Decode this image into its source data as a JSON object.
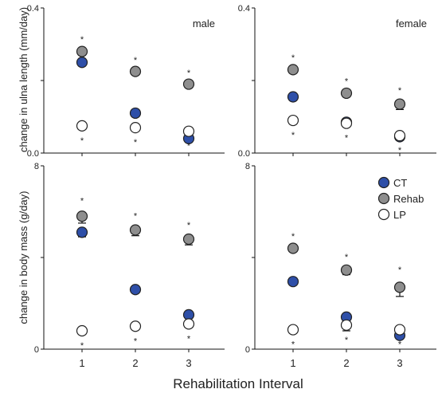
{
  "colors": {
    "CT": "#2e4fa8",
    "Rehab": "#8e8e8e",
    "LP": "#ffffff",
    "edge": "#222222"
  },
  "xlabel": "Rehabilitation Interval",
  "legend": {
    "placement": "inside bottom-right panel, top-right",
    "entries": [
      "CT",
      "Rehab",
      "LP"
    ]
  },
  "chart_data": [
    {
      "type": "scatter",
      "panel": "top-left",
      "title": "male",
      "ylabel": "change in ulna length (mm/day)",
      "ylim": [
        0.0,
        0.4
      ],
      "yticks": [
        "0.0",
        "0.4"
      ],
      "x": [
        "1",
        "2",
        "3"
      ],
      "series": [
        {
          "name": "CT",
          "values": [
            0.25,
            0.11,
            0.04
          ],
          "err": [
            0.01,
            0.005,
            0.005
          ]
        },
        {
          "name": "Rehab",
          "values": [
            0.28,
            0.225,
            0.19
          ],
          "err": [
            0.01,
            0.008,
            0.008
          ],
          "sig": [
            "*",
            "*",
            "*"
          ]
        },
        {
          "name": "LP",
          "values": [
            0.075,
            0.07,
            0.06
          ],
          "err": [
            0.005,
            0.005,
            0.008
          ],
          "sig": [
            "*",
            "*",
            "*"
          ]
        }
      ]
    },
    {
      "type": "scatter",
      "panel": "top-right",
      "title": "female",
      "ylabel": "",
      "ylim": [
        0.0,
        0.4
      ],
      "yticks": [
        "0.0",
        "0.4"
      ],
      "x": [
        "1",
        "2",
        "3"
      ],
      "series": [
        {
          "name": "CT",
          "values": [
            0.155,
            0.085,
            0.045
          ],
          "err": [
            0.01,
            0.004,
            0.004
          ]
        },
        {
          "name": "Rehab",
          "values": [
            0.23,
            0.165,
            0.135
          ],
          "err": [
            0.01,
            0.01,
            0.015
          ],
          "sig": [
            "*",
            "*",
            "*"
          ]
        },
        {
          "name": "LP",
          "values": [
            0.09,
            0.082,
            0.048
          ],
          "err": [
            0.005,
            0.004,
            0.004
          ],
          "sig": [
            "*",
            "*",
            "*"
          ]
        }
      ]
    },
    {
      "type": "scatter",
      "panel": "bottom-left",
      "title": "",
      "ylabel": "change in body mass (g/day)",
      "ylim": [
        0,
        8
      ],
      "yticks": [
        "0",
        "8"
      ],
      "x": [
        "1",
        "2",
        "3"
      ],
      "series": [
        {
          "name": "CT",
          "values": [
            5.1,
            2.6,
            1.5
          ],
          "err": [
            0.2,
            0.1,
            0.15
          ]
        },
        {
          "name": "Rehab",
          "values": [
            5.8,
            5.2,
            4.8
          ],
          "err": [
            0.3,
            0.25,
            0.25
          ],
          "sig": [
            "*",
            "*",
            "*"
          ]
        },
        {
          "name": "LP",
          "values": [
            0.8,
            1.0,
            1.1
          ],
          "err": [
            0.1,
            0.1,
            0.15
          ],
          "sig": [
            "*",
            "*",
            "*"
          ]
        }
      ]
    },
    {
      "type": "scatter",
      "panel": "bottom-right",
      "title": "",
      "ylabel": "",
      "ylim": [
        0,
        8
      ],
      "yticks": [
        "0",
        "8"
      ],
      "x": [
        "1",
        "2",
        "3"
      ],
      "series": [
        {
          "name": "CT",
          "values": [
            2.95,
            1.4,
            0.6
          ],
          "err": [
            0.1,
            0.1,
            0.1
          ]
        },
        {
          "name": "Rehab",
          "values": [
            4.4,
            3.45,
            2.7
          ],
          "err": [
            0.15,
            0.2,
            0.4
          ],
          "sig": [
            "*",
            "*",
            "*"
          ]
        },
        {
          "name": "LP",
          "values": [
            0.85,
            1.05,
            0.85
          ],
          "err": [
            0.1,
            0.25,
            0.1
          ],
          "sig": [
            "*",
            "*",
            "*"
          ]
        }
      ]
    }
  ]
}
